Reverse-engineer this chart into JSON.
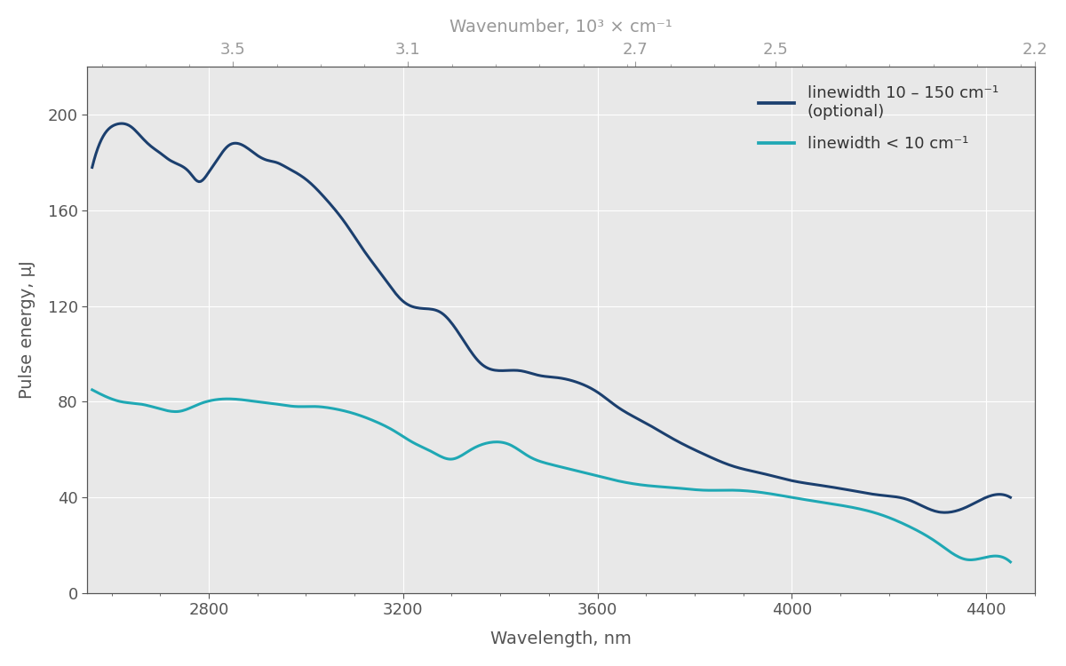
{
  "xlabel": "Wavelength, nm",
  "ylabel": "Pulse energy, μJ",
  "top_xlabel": "Wavenumber, 10³ × cm⁻¹",
  "xlim": [
    2550,
    4500
  ],
  "ylim": [
    0,
    220
  ],
  "yticks": [
    0,
    40,
    80,
    120,
    160,
    200
  ],
  "xticks_bottom": [
    2800,
    3200,
    3600,
    4000,
    4400
  ],
  "xtick_labels_bottom": [
    "2800",
    "3200",
    "3600",
    "4000",
    "4400"
  ],
  "xticks_top_values": [
    3.5,
    3.1,
    2.7,
    2.5,
    2.2
  ],
  "fig_bg_color": "#ffffff",
  "plot_bg_color": "#e8e8e8",
  "grid_color": "#ffffff",
  "axis_color": "#555555",
  "tick_color": "#555555",
  "top_axis_color": "#999999",
  "line1_color": "#1b3f6e",
  "line2_color": "#1fa8b4",
  "line1_label": "linewidth 10 – 150 cm⁻¹\n(optional)",
  "line2_label": "linewidth < 10 cm⁻¹",
  "line_width": 2.2,
  "dark_blue_x": [
    2560,
    2580,
    2610,
    2640,
    2660,
    2680,
    2700,
    2720,
    2740,
    2760,
    2780,
    2800,
    2820,
    2840,
    2860,
    2880,
    2900,
    2920,
    2940,
    2960,
    3000,
    3040,
    3080,
    3120,
    3160,
    3200,
    3240,
    3280,
    3320,
    3360,
    3400,
    3440,
    3480,
    3520,
    3560,
    3600,
    3640,
    3700,
    3760,
    3820,
    3880,
    3940,
    4000,
    4060,
    4120,
    4180,
    4240,
    4300,
    4360,
    4400,
    4450
  ],
  "dark_blue_y": [
    178,
    190,
    196,
    195,
    191,
    187,
    184,
    181,
    179,
    176,
    172,
    176,
    182,
    187,
    188,
    186,
    183,
    181,
    180,
    178,
    173,
    165,
    155,
    143,
    132,
    122,
    119,
    117,
    107,
    96,
    93,
    93,
    91,
    90,
    88,
    84,
    78,
    71,
    64,
    58,
    53,
    50,
    47,
    45,
    43,
    41,
    39,
    34,
    36,
    40,
    40
  ],
  "teal_x": [
    2560,
    2590,
    2620,
    2660,
    2700,
    2740,
    2780,
    2820,
    2860,
    2900,
    2940,
    2980,
    3020,
    3060,
    3100,
    3140,
    3180,
    3220,
    3260,
    3300,
    3340,
    3380,
    3420,
    3460,
    3500,
    3540,
    3580,
    3640,
    3700,
    3760,
    3820,
    3880,
    3940,
    4000,
    4060,
    4120,
    4180,
    4240,
    4300,
    4360,
    4400,
    4450
  ],
  "teal_y": [
    85,
    82,
    80,
    79,
    77,
    76,
    79,
    81,
    81,
    80,
    79,
    78,
    78,
    77,
    75,
    72,
    68,
    63,
    59,
    56,
    60,
    63,
    62,
    57,
    54,
    52,
    50,
    47,
    45,
    44,
    43,
    43,
    42,
    40,
    38,
    36,
    33,
    28,
    21,
    14,
    15,
    13
  ]
}
